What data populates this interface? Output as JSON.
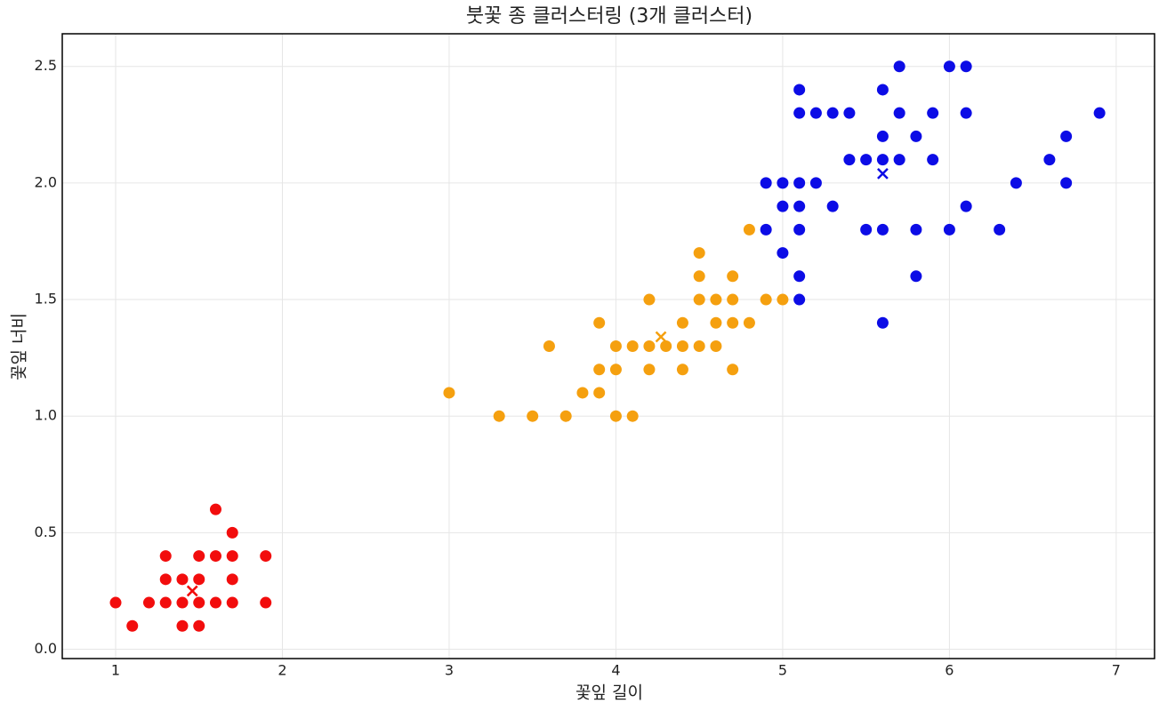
{
  "chart_data": {
    "type": "scatter",
    "title": "붓꽃 종 클러스터링 (3개 클러스터)",
    "x_label": "꽃잎 길이",
    "y_label": "꽃잎 너비",
    "xlim": [
      0.68,
      7.23
    ],
    "ylim": [
      -0.04,
      2.64
    ],
    "xticks": [
      1,
      2,
      3,
      4,
      5,
      6,
      7
    ],
    "yticks": [
      {
        "value": 0,
        "label": "0.0"
      },
      {
        "value": 0.5,
        "label": "0.5"
      },
      {
        "value": 1,
        "label": "1.0"
      },
      {
        "value": 1.5,
        "label": "1.5"
      },
      {
        "value": 2,
        "label": "2.0"
      },
      {
        "value": 2.5,
        "label": "2.5"
      }
    ],
    "grid": true,
    "series": [
      {
        "color": "#f20d0d",
        "x": [
          1.0,
          1.1,
          1.2,
          1.3,
          1.3,
          1.3,
          1.4,
          1.4,
          1.4,
          1.5,
          1.5,
          1.5,
          1.5,
          1.6,
          1.6,
          1.6,
          1.7,
          1.7,
          1.7,
          1.7,
          1.9,
          1.9
        ],
        "values": [
          0.2,
          0.1,
          0.2,
          0.2,
          0.3,
          0.4,
          0.1,
          0.2,
          0.3,
          0.1,
          0.2,
          0.3,
          0.4,
          0.2,
          0.4,
          0.6,
          0.2,
          0.3,
          0.4,
          0.5,
          0.2,
          0.4
        ],
        "centroid": [
          1.46,
          0.25
        ]
      },
      {
        "color": "#f5a00f",
        "x": [
          3.0,
          3.3,
          3.5,
          3.6,
          3.7,
          3.8,
          3.9,
          3.9,
          3.9,
          4.0,
          4.0,
          4.0,
          4.1,
          4.1,
          4.2,
          4.2,
          4.2,
          4.3,
          4.4,
          4.4,
          4.4,
          4.5,
          4.5,
          4.5,
          4.5,
          4.6,
          4.6,
          4.6,
          4.7,
          4.7,
          4.7,
          4.7,
          4.8,
          4.8,
          4.9,
          5.0
        ],
        "values": [
          1.1,
          1.0,
          1.0,
          1.3,
          1.0,
          1.1,
          1.1,
          1.2,
          1.4,
          1.0,
          1.2,
          1.3,
          1.0,
          1.3,
          1.2,
          1.3,
          1.5,
          1.3,
          1.2,
          1.3,
          1.4,
          1.3,
          1.5,
          1.6,
          1.7,
          1.3,
          1.4,
          1.5,
          1.2,
          1.4,
          1.5,
          1.6,
          1.4,
          1.8,
          1.5,
          1.5
        ],
        "centroid": [
          4.27,
          1.34
        ]
      },
      {
        "color": "#0c0ce6",
        "x": [
          4.9,
          4.9,
          5.0,
          5.0,
          5.0,
          5.1,
          5.1,
          5.1,
          5.1,
          5.1,
          5.1,
          5.1,
          5.2,
          5.2,
          5.3,
          5.3,
          5.4,
          5.4,
          5.5,
          5.5,
          5.6,
          5.6,
          5.6,
          5.6,
          5.6,
          5.7,
          5.7,
          5.7,
          5.8,
          5.8,
          5.8,
          5.9,
          5.9,
          6.0,
          6.0,
          6.1,
          6.1,
          6.1,
          6.3,
          6.4,
          6.6,
          6.7,
          6.7,
          6.9
        ],
        "values": [
          1.8,
          2.0,
          1.7,
          1.9,
          2.0,
          1.5,
          1.6,
          1.8,
          1.9,
          2.0,
          2.3,
          2.4,
          2.0,
          2.3,
          1.9,
          2.3,
          2.1,
          2.3,
          1.8,
          2.1,
          1.4,
          1.8,
          2.1,
          2.2,
          2.4,
          2.1,
          2.3,
          2.5,
          1.6,
          1.8,
          2.2,
          2.1,
          2.3,
          1.8,
          2.5,
          1.9,
          2.3,
          2.5,
          1.8,
          2.0,
          2.1,
          2.0,
          2.2,
          2.3
        ],
        "centroid": [
          5.6,
          2.04
        ]
      }
    ]
  }
}
